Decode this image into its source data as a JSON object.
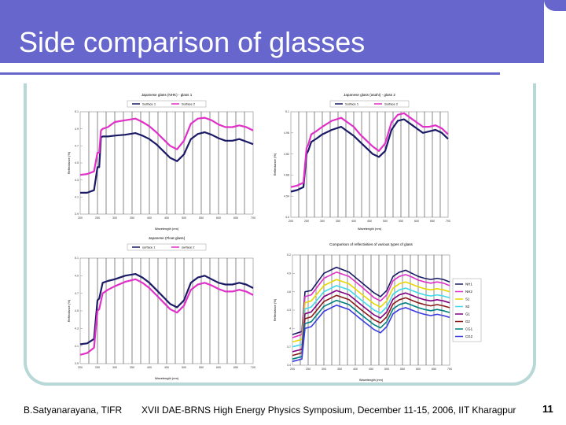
{
  "slide": {
    "title": "Side comparison of glasses",
    "footer_left": "B.Satyanarayana, TIFR",
    "footer_center": "XVII DAE-BRNS High Energy Physics Symposium, December 11-15, 2006, IIT Kharagpur",
    "page_number": "11"
  },
  "chart_data": [
    {
      "type": "line",
      "title": "Japanese glass (NHK) - glass 1",
      "xlabel": "Wavelength (nm)",
      "ylabel": "Reflectance (%)",
      "xlim": [
        200,
        700
      ],
      "ylim": [
        3.9,
        5.1
      ],
      "x_ticks": [
        "200",
        "225",
        "250",
        "275",
        "300",
        "325",
        "350",
        "375",
        "400",
        "425",
        "450",
        "475",
        "500",
        "525",
        "550",
        "575",
        "600",
        "625",
        "650",
        "675",
        "700"
      ],
      "y_ticks": [
        "3.9",
        "4.1",
        "4.3",
        "4.5",
        "4.7",
        "4.9",
        "5.1"
      ],
      "series": [
        {
          "name": "Surface 1",
          "color": "#1a1a66",
          "x": [
            200,
            220,
            240,
            250,
            255,
            260,
            265,
            280,
            300,
            330,
            360,
            380,
            400,
            420,
            440,
            460,
            480,
            500,
            520,
            540,
            560,
            580,
            600,
            620,
            640,
            660,
            680,
            700
          ],
          "y": [
            4.15,
            4.15,
            4.18,
            4.45,
            4.45,
            4.8,
            4.81,
            4.81,
            4.82,
            4.83,
            4.85,
            4.82,
            4.78,
            4.72,
            4.64,
            4.56,
            4.52,
            4.6,
            4.78,
            4.84,
            4.86,
            4.83,
            4.79,
            4.76,
            4.76,
            4.78,
            4.75,
            4.72
          ]
        },
        {
          "name": "Surface 2",
          "color": "#e030c8",
          "x": [
            200,
            220,
            240,
            250,
            255,
            260,
            265,
            280,
            300,
            330,
            360,
            380,
            400,
            420,
            440,
            460,
            480,
            500,
            520,
            540,
            560,
            580,
            600,
            620,
            640,
            660,
            680,
            700
          ],
          "y": [
            4.36,
            4.37,
            4.4,
            4.62,
            4.62,
            4.88,
            4.9,
            4.92,
            4.98,
            5.0,
            5.02,
            4.98,
            4.93,
            4.86,
            4.78,
            4.7,
            4.66,
            4.76,
            4.96,
            5.02,
            5.03,
            5.0,
            4.95,
            4.92,
            4.92,
            4.94,
            4.92,
            4.88
          ]
        }
      ]
    },
    {
      "type": "line",
      "title": "Japanese glass (asahi) - glass 2",
      "xlabel": "Wavelength (nm)",
      "ylabel": "Reflectance (%)",
      "xlim": [
        200,
        700
      ],
      "ylim": [
        4.4,
        5.1
      ],
      "x_ticks": [
        "200",
        "225",
        "250",
        "275",
        "300",
        "325",
        "350",
        "375",
        "400",
        "425",
        "450",
        "475",
        "500",
        "525",
        "550",
        "575",
        "600",
        "625",
        "650",
        "675",
        "700"
      ],
      "y_ticks": [
        "4.4",
        "4.54",
        "4.68",
        "4.82",
        "4.96",
        "5.1"
      ],
      "series": [
        {
          "name": "Surface 1",
          "color": "#1a1a66",
          "x": [
            200,
            220,
            240,
            250,
            255,
            265,
            280,
            300,
            330,
            360,
            380,
            400,
            420,
            440,
            460,
            480,
            500,
            520,
            540,
            560,
            580,
            600,
            620,
            640,
            660,
            680,
            700
          ],
          "y": [
            4.57,
            4.58,
            4.6,
            4.82,
            4.84,
            4.9,
            4.92,
            4.95,
            4.98,
            5.0,
            4.97,
            4.94,
            4.9,
            4.86,
            4.82,
            4.8,
            4.84,
            4.98,
            5.04,
            5.05,
            5.02,
            4.99,
            4.96,
            4.97,
            4.98,
            4.96,
            4.92
          ]
        },
        {
          "name": "Surface 2",
          "color": "#e030c8",
          "x": [
            200,
            220,
            240,
            250,
            255,
            265,
            280,
            300,
            330,
            360,
            380,
            400,
            420,
            440,
            460,
            480,
            500,
            520,
            540,
            560,
            580,
            600,
            620,
            640,
            660,
            680,
            700
          ],
          "y": [
            4.6,
            4.61,
            4.63,
            4.86,
            4.88,
            4.95,
            4.97,
            5.0,
            5.04,
            5.06,
            5.03,
            5.0,
            4.95,
            4.91,
            4.87,
            4.84,
            4.89,
            5.03,
            5.08,
            5.09,
            5.06,
            5.03,
            5.0,
            5.0,
            5.01,
            4.99,
            4.95
          ]
        }
      ]
    },
    {
      "type": "line",
      "title": "Japanese (Float glass)",
      "xlabel": "Wavelength (nm)",
      "ylabel": "Reflectance (%)",
      "xlim": [
        200,
        700
      ],
      "ylim": [
        3.9,
        5.1
      ],
      "x_ticks": [
        "200",
        "225",
        "250",
        "275",
        "300",
        "325",
        "350",
        "375",
        "400",
        "425",
        "450",
        "475",
        "500",
        "525",
        "550",
        "575",
        "600",
        "625",
        "650",
        "675",
        "700"
      ],
      "y_ticks": [
        "3.9",
        "4.1",
        "4.3",
        "4.5",
        "4.7",
        "4.9",
        "5.1"
      ],
      "series": [
        {
          "name": "surface 1",
          "color": "#1a1a66",
          "x": [
            200,
            220,
            240,
            250,
            255,
            265,
            280,
            300,
            330,
            360,
            380,
            400,
            420,
            440,
            460,
            480,
            500,
            520,
            540,
            560,
            580,
            600,
            620,
            640,
            660,
            680,
            700
          ],
          "y": [
            4.12,
            4.13,
            4.18,
            4.62,
            4.64,
            4.82,
            4.84,
            4.86,
            4.9,
            4.92,
            4.88,
            4.82,
            4.74,
            4.66,
            4.58,
            4.54,
            4.62,
            4.82,
            4.88,
            4.9,
            4.86,
            4.82,
            4.8,
            4.8,
            4.82,
            4.8,
            4.76
          ]
        },
        {
          "name": "surface 2",
          "color": "#e030c8",
          "x": [
            200,
            220,
            240,
            250,
            255,
            265,
            280,
            300,
            330,
            360,
            380,
            400,
            420,
            440,
            460,
            480,
            500,
            520,
            540,
            560,
            580,
            600,
            620,
            640,
            660,
            680,
            700
          ],
          "y": [
            4.0,
            4.02,
            4.08,
            4.5,
            4.52,
            4.7,
            4.74,
            4.78,
            4.83,
            4.86,
            4.82,
            4.76,
            4.68,
            4.6,
            4.52,
            4.48,
            4.56,
            4.74,
            4.8,
            4.82,
            4.79,
            4.75,
            4.72,
            4.72,
            4.74,
            4.72,
            4.68
          ]
        }
      ]
    },
    {
      "type": "line",
      "title": "Comparison of reflectivities of various types of glass",
      "xlabel": "Wavelength (nm)",
      "ylabel": "Reflectance (%)",
      "xlim": [
        200,
        700
      ],
      "ylim": [
        3.4,
        5.2
      ],
      "x_ticks": [
        "200",
        "225",
        "250",
        "275",
        "300",
        "325",
        "350",
        "375",
        "400",
        "425",
        "450",
        "475",
        "500",
        "525",
        "550",
        "575",
        "600",
        "625",
        "650",
        "675",
        "700"
      ],
      "y_ticks": [
        "3.4",
        "3.7",
        "4",
        "4.3",
        "4.6",
        "4.9",
        "5.2"
      ],
      "legend_position": "right",
      "series": [
        {
          "name": "NH1",
          "color": "#1a1a66",
          "x": [
            200,
            230,
            240,
            260,
            300,
            340,
            380,
            420,
            460,
            480,
            500,
            520,
            540,
            560,
            580,
            600,
            620,
            640,
            660,
            680,
            700
          ],
          "y": [
            3.9,
            3.95,
            4.6,
            4.62,
            4.9,
            5.0,
            4.92,
            4.75,
            4.58,
            4.52,
            4.62,
            4.85,
            4.92,
            4.95,
            4.9,
            4.85,
            4.82,
            4.8,
            4.82,
            4.8,
            4.76
          ]
        },
        {
          "name": "NH2",
          "color": "#e030c8",
          "x": [
            200,
            230,
            240,
            260,
            300,
            340,
            380,
            420,
            460,
            480,
            500,
            520,
            540,
            560,
            580,
            600,
            620,
            640,
            660,
            680,
            700
          ],
          "y": [
            3.85,
            3.9,
            4.52,
            4.55,
            4.82,
            4.92,
            4.85,
            4.68,
            4.5,
            4.45,
            4.55,
            4.78,
            4.85,
            4.88,
            4.84,
            4.79,
            4.76,
            4.74,
            4.76,
            4.74,
            4.7
          ]
        },
        {
          "name": "S1",
          "color": "#e6d800",
          "x": [
            200,
            230,
            240,
            260,
            300,
            340,
            380,
            420,
            460,
            480,
            500,
            520,
            540,
            560,
            580,
            600,
            620,
            640,
            660,
            680,
            700
          ],
          "y": [
            3.78,
            3.82,
            4.42,
            4.45,
            4.7,
            4.8,
            4.73,
            4.56,
            4.4,
            4.35,
            4.45,
            4.66,
            4.73,
            4.76,
            4.72,
            4.68,
            4.65,
            4.63,
            4.65,
            4.63,
            4.6
          ]
        },
        {
          "name": "S2",
          "color": "#40d8e8",
          "x": [
            200,
            230,
            240,
            260,
            300,
            340,
            380,
            420,
            460,
            480,
            500,
            520,
            540,
            560,
            580,
            600,
            620,
            640,
            660,
            680,
            700
          ],
          "y": [
            3.7,
            3.74,
            4.32,
            4.35,
            4.6,
            4.7,
            4.63,
            4.46,
            4.3,
            4.25,
            4.35,
            4.56,
            4.63,
            4.66,
            4.62,
            4.58,
            4.55,
            4.53,
            4.55,
            4.53,
            4.5
          ]
        },
        {
          "name": "G1",
          "color": "#800080",
          "x": [
            200,
            230,
            240,
            260,
            300,
            340,
            380,
            420,
            460,
            480,
            500,
            520,
            540,
            560,
            580,
            600,
            620,
            640,
            660,
            680,
            700
          ],
          "y": [
            3.62,
            3.66,
            4.24,
            4.27,
            4.52,
            4.62,
            4.55,
            4.38,
            4.22,
            4.17,
            4.27,
            4.48,
            4.55,
            4.58,
            4.54,
            4.5,
            4.47,
            4.45,
            4.47,
            4.45,
            4.42
          ]
        },
        {
          "name": "G2",
          "color": "#8b1a1a",
          "x": [
            200,
            230,
            240,
            260,
            300,
            340,
            380,
            420,
            460,
            480,
            500,
            520,
            540,
            560,
            580,
            600,
            620,
            640,
            660,
            680,
            700
          ],
          "y": [
            3.56,
            3.6,
            4.16,
            4.19,
            4.44,
            4.54,
            4.47,
            4.3,
            4.14,
            4.09,
            4.19,
            4.4,
            4.47,
            4.5,
            4.46,
            4.42,
            4.39,
            4.37,
            4.39,
            4.37,
            4.34
          ]
        },
        {
          "name": "CG1",
          "color": "#008080",
          "x": [
            200,
            230,
            240,
            260,
            300,
            340,
            380,
            420,
            460,
            480,
            500,
            520,
            540,
            560,
            580,
            600,
            620,
            640,
            660,
            680,
            700
          ],
          "y": [
            3.5,
            3.54,
            4.08,
            4.11,
            4.36,
            4.46,
            4.39,
            4.22,
            4.06,
            4.01,
            4.11,
            4.32,
            4.39,
            4.42,
            4.38,
            4.34,
            4.31,
            4.29,
            4.31,
            4.29,
            4.26
          ]
        },
        {
          "name": "CG2",
          "color": "#3a3ae0",
          "x": [
            200,
            230,
            240,
            260,
            300,
            340,
            380,
            420,
            460,
            480,
            500,
            520,
            540,
            560,
            580,
            600,
            620,
            640,
            660,
            680,
            700
          ],
          "y": [
            3.46,
            3.5,
            4.0,
            4.03,
            4.28,
            4.38,
            4.31,
            4.14,
            3.98,
            3.93,
            4.03,
            4.24,
            4.31,
            4.34,
            4.3,
            4.26,
            4.23,
            4.21,
            4.23,
            4.21,
            4.18
          ]
        }
      ]
    }
  ]
}
